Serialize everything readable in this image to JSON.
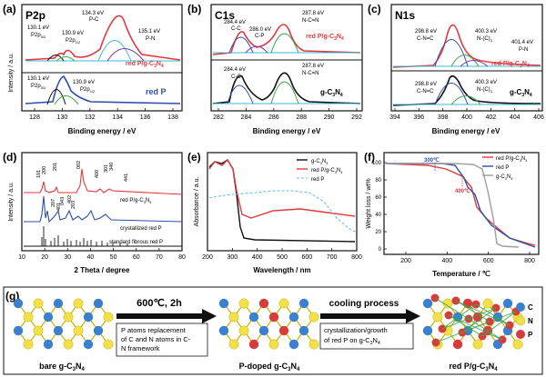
{
  "colors": {
    "black": "#111111",
    "red": "#e0393e",
    "blue": "#2f4fa8",
    "green": "#3aa84a",
    "cyan": "#3ab8d8",
    "purple": "#7a3aa8",
    "gray": "#9e9e9e",
    "lightblue": "#66b8e0",
    "carbon": "#3b7fcf",
    "nitrogen": "#f2e04a",
    "phosphorus": "#d93b3b",
    "bond": "#c8b400"
  },
  "panels": {
    "a": {
      "tag": "(a)",
      "title": "P2p",
      "xlabel": "Binding energy / eV",
      "ylabel": "Intensity / a.u.",
      "ticks": [
        "128",
        "130",
        "132",
        "134",
        "136",
        "138"
      ],
      "ann": {
        "p1": "134.3 eV",
        "p1b": "P-C",
        "p2": "130.1 eV",
        "p2b": "P2p",
        "p2s": "3/2",
        "p3": "130.9 eV",
        "p3b": "P2p",
        "p3s": "1/2",
        "p4": "135.1 eV",
        "p4b": "P-N",
        "p5": "130.1 eV",
        "p5b": "P2p",
        "p5s": "3/2",
        "p6": "130.9 eV",
        "p6b": "P2p",
        "p6s": "1/2"
      },
      "lab_top": "red P/g-C",
      "lab_top_sub": "3",
      "lab_top_end": "N",
      "lab_top_sub2": "4",
      "lab_bot": "red P"
    },
    "b": {
      "tag": "(b)",
      "title": "C1s",
      "xlabel": "Binding energy / eV",
      "ticks": [
        "282",
        "284",
        "286",
        "288",
        "290",
        "292"
      ],
      "ann": {
        "a1": "284.4 eV",
        "a1b": "C-C",
        "a2": "286.0 eV",
        "a2b": "C-P",
        "a3": "287.8 eV",
        "a3b": "N-C=N",
        "a4": "284.4 eV",
        "a4b": "C-C",
        "a5": "287.8 eV",
        "a5b": "N-C=N"
      },
      "lab_top": "red P/g-C",
      "lab_top_sub": "3",
      "lab_top_end": "N",
      "lab_top_sub2": "4",
      "lab_bot": "g-C",
      "lab_bot_sub": "3",
      "lab_bot_end": "N",
      "lab_bot_sub2": "4"
    },
    "c": {
      "tag": "(c)",
      "title": "N1s",
      "xlabel": "Binding energy / eV",
      "ticks": [
        "394",
        "396",
        "398",
        "400",
        "402",
        "404",
        "406"
      ],
      "ann": {
        "n1": "298.8 eV",
        "n1b": "C-N=C",
        "n2": "400.3 eV",
        "n2b": "N-(C)",
        "n2s": "3",
        "n3": "401.4 eV",
        "n3b": "P-N",
        "n4": "298.8 eV",
        "n4b": "C-N=C",
        "n5": "400.3 eV",
        "n5b": "N-(C)",
        "n5s": "3"
      },
      "lab_top": "red P/g-C",
      "lab_top_sub": "3",
      "lab_top_end": "N",
      "lab_top_sub2": "4",
      "lab_bot": "g-C",
      "lab_bot_sub": "3",
      "lab_bot_end": "N",
      "lab_bot_sub2": "4"
    },
    "d": {
      "tag": "(d)",
      "xlabel": "2 Theta / degree",
      "ylabel": "Intensity / a.u.",
      "ticks": [
        "10",
        "20",
        "30",
        "40",
        "50",
        "60",
        "70",
        "80"
      ],
      "peaks": [
        "101",
        "200",
        "201",
        "002",
        "400",
        "301",
        "340",
        "441",
        "207",
        "043",
        "402",
        "203",
        "401"
      ],
      "l1": "red P/g-C",
      "l1s": "3",
      "l1e": "N",
      "l1s2": "4",
      "l2": "crystallized red P",
      "l3": "standard fibrous red P"
    },
    "e": {
      "tag": "(e)",
      "xlabel": "Wavelength / nm",
      "ylabel": "Absorbance / a.u.",
      "ticks": [
        "200",
        "300",
        "400",
        "500",
        "600",
        "700",
        "800"
      ],
      "legend": [
        {
          "name": "g-C",
          "sub": "3",
          "end": "N",
          "sub2": "4",
          "style": "black"
        },
        {
          "name": "red P/g-C",
          "sub": "3",
          "end": "N",
          "sub2": "4",
          "style": "red"
        },
        {
          "name": "red P",
          "sub": "",
          "end": "",
          "sub2": "",
          "style": "dash"
        }
      ]
    },
    "f": {
      "tag": "(f)",
      "xlabel": "Temperature / ℃",
      "ylabel": "Weight loss / wt%",
      "xticks": [
        "200",
        "400",
        "600",
        "800"
      ],
      "yticks": [
        "0",
        "20",
        "40",
        "60",
        "80",
        "100"
      ],
      "ann1": "300℃",
      "ann2": "400℃",
      "legend": [
        {
          "name": "red P/g-C",
          "sub": "3",
          "end": "N",
          "sub2": "4",
          "style": "red"
        },
        {
          "name": "red P",
          "sub": "",
          "end": "",
          "sub2": "",
          "style": "blue"
        },
        {
          "name": "g-C",
          "sub": "3",
          "end": "N",
          "sub2": "4",
          "style": "gray"
        }
      ]
    },
    "g": {
      "tag": "(g)",
      "step1": "600℃, 2h",
      "box1": [
        "P atoms replacement",
        "of C and N atoms in C-",
        "N framework"
      ],
      "step2": "cooling process",
      "box2": [
        "crystallization/growth",
        "of red P on g-C",
        "3",
        "N",
        "4"
      ],
      "cap1": "bare g-C",
      "cap1s": "3",
      "cap1e": "N",
      "cap1s2": "4",
      "cap2": "P-doped g-C",
      "cap2s": "3",
      "cap2e": "N",
      "cap2s2": "4",
      "cap3": "red P/g-C",
      "cap3s": "3",
      "cap3e": "N",
      "cap3s2": "4",
      "legend": [
        "C",
        "N",
        "P"
      ]
    }
  }
}
